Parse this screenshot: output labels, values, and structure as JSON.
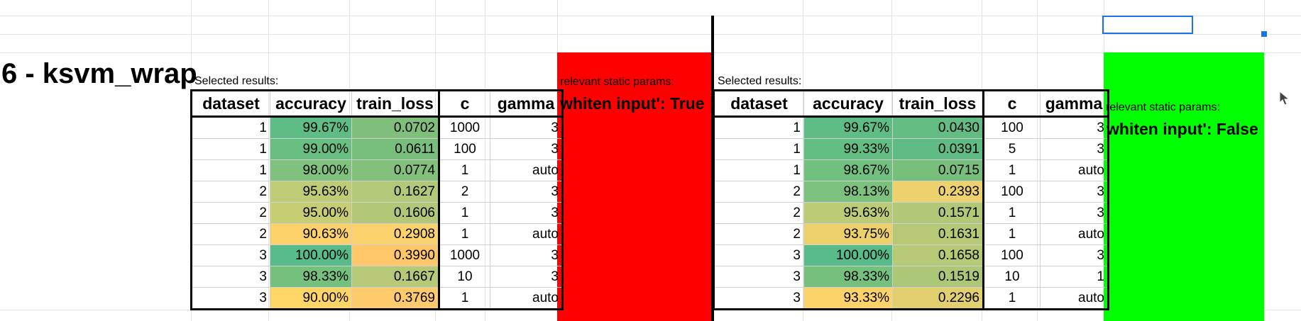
{
  "sheet": {
    "title": "6 - ksvm_wrap",
    "left_block": {
      "caption": "Selected results:",
      "params_caption": "relevant static params:",
      "params_value": "whiten input': True",
      "params_color": "#ff0000",
      "headers": [
        "dataset",
        "accuracy",
        "train_loss",
        "c",
        "gamma"
      ],
      "rows": [
        {
          "dataset": "1",
          "accuracy": "99.67%",
          "train_loss": "0.0702",
          "c": "1000",
          "gamma": "3",
          "acc_color": "#5ebd84",
          "loss_color": "#7fbf7b"
        },
        {
          "dataset": "1",
          "accuracy": "99.00%",
          "train_loss": "0.0611",
          "c": "100",
          "gamma": "3",
          "acc_color": "#68bf81",
          "loss_color": "#78be7c"
        },
        {
          "dataset": "1",
          "accuracy": "98.00%",
          "train_loss": "0.0774",
          "c": "1",
          "gamma": "auto",
          "acc_color": "#7fc17d",
          "loss_color": "#83c07c"
        },
        {
          "dataset": "2",
          "accuracy": "95.63%",
          "train_loss": "0.1627",
          "c": "2",
          "gamma": "3",
          "acc_color": "#bfcc75",
          "loss_color": "#b3c878"
        },
        {
          "dataset": "2",
          "accuracy": "95.00%",
          "train_loss": "0.1606",
          "c": "1",
          "gamma": "3",
          "acc_color": "#c6cd73",
          "loss_color": "#b2c878"
        },
        {
          "dataset": "2",
          "accuracy": "90.63%",
          "train_loss": "0.2908",
          "c": "1",
          "gamma": "auto",
          "acc_color": "#fcd16a",
          "loss_color": "#fbd26b"
        },
        {
          "dataset": "3",
          "accuracy": "100.00%",
          "train_loss": "0.3990",
          "c": "1000",
          "gamma": "3",
          "acc_color": "#57bb8a",
          "loss_color": "#ffc76a"
        },
        {
          "dataset": "3",
          "accuracy": "98.33%",
          "train_loss": "0.1667",
          "c": "10",
          "gamma": "3",
          "acc_color": "#76c07e",
          "loss_color": "#b6c978"
        },
        {
          "dataset": "3",
          "accuracy": "90.00%",
          "train_loss": "0.3769",
          "c": "1",
          "gamma": "auto",
          "acc_color": "#ffd666",
          "loss_color": "#ffca6c"
        }
      ]
    },
    "right_block": {
      "caption": "Selected results:",
      "params_caption": "relevant static params:",
      "params_value": "whiten input': False",
      "params_color": "#00ff00",
      "headers": [
        "dataset",
        "accuracy",
        "train_loss",
        "c",
        "gamma"
      ],
      "rows": [
        {
          "dataset": "1",
          "accuracy": "99.67%",
          "train_loss": "0.0430",
          "c": "100",
          "gamma": "3",
          "acc_color": "#5ebd84",
          "loss_color": "#63bd83"
        },
        {
          "dataset": "1",
          "accuracy": "99.33%",
          "train_loss": "0.0391",
          "c": "5",
          "gamma": "3",
          "acc_color": "#63be83",
          "loss_color": "#5fbc84"
        },
        {
          "dataset": "1",
          "accuracy": "98.67%",
          "train_loss": "0.0715",
          "c": "1",
          "gamma": "auto",
          "acc_color": "#72c07f",
          "loss_color": "#79bf7c"
        },
        {
          "dataset": "2",
          "accuracy": "98.13%",
          "train_loss": "0.2393",
          "c": "100",
          "gamma": "3",
          "acc_color": "#7dc17e",
          "loss_color": "#ecd16c"
        },
        {
          "dataset": "2",
          "accuracy": "95.63%",
          "train_loss": "0.1571",
          "c": "1",
          "gamma": "3",
          "acc_color": "#bccb76",
          "loss_color": "#b2c878"
        },
        {
          "dataset": "2",
          "accuracy": "93.75%",
          "train_loss": "0.1631",
          "c": "1",
          "gamma": "auto",
          "acc_color": "#ecd06b",
          "loss_color": "#b5c977"
        },
        {
          "dataset": "3",
          "accuracy": "100.00%",
          "train_loss": "0.1658",
          "c": "100",
          "gamma": "3",
          "acc_color": "#57bb8a",
          "loss_color": "#b6c977"
        },
        {
          "dataset": "3",
          "accuracy": "98.33%",
          "train_loss": "0.1519",
          "c": "10",
          "gamma": "1",
          "acc_color": "#76c07e",
          "loss_color": "#adc779"
        },
        {
          "dataset": "3",
          "accuracy": "93.33%",
          "train_loss": "0.2296",
          "c": "1",
          "gamma": "auto",
          "acc_color": "#fbd36a",
          "loss_color": "#e2cf6f"
        }
      ]
    }
  },
  "ui": {
    "selection_color": "#1a73e8",
    "cursor_icon": "mouse-pointer-icon"
  }
}
